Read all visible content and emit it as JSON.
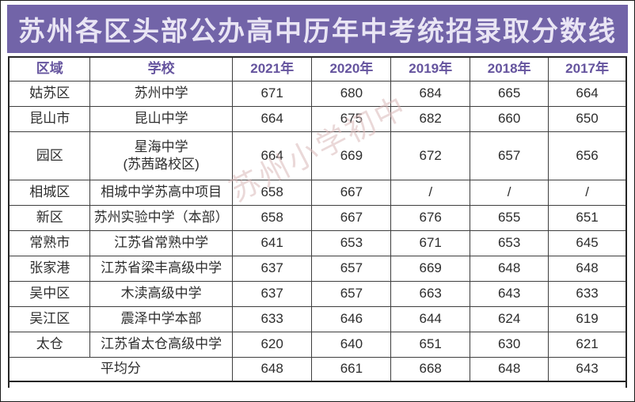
{
  "title": "苏州各区头部公办高中历年中考统招录取分数线",
  "watermark": "苏州小学初中",
  "colors": {
    "title_bg": "#7264a8",
    "title_text": "#e9e5f4",
    "header_text": "#65549e",
    "body_text": "#2d2d2d",
    "border": "#3e3e3e",
    "watermark": "#d9b9b9"
  },
  "chart_data": {
    "type": "table",
    "title": "苏州各区头部公办高中历年中考统招录取分数线",
    "columns": [
      "区域",
      "学校",
      "2021年",
      "2020年",
      "2019年",
      "2018年",
      "2017年"
    ],
    "rows": [
      {
        "region": "姑苏区",
        "school": "苏州中学",
        "scores": [
          "671",
          "680",
          "684",
          "665",
          "664"
        ]
      },
      {
        "region": "昆山市",
        "school": "昆山中学",
        "scores": [
          "664",
          "675",
          "682",
          "660",
          "650"
        ]
      },
      {
        "region": "园区",
        "school": "星海中学(苏茜路校区)",
        "school_lines": [
          "星海中学",
          "(苏茜路校区)"
        ],
        "scores": [
          "664",
          "669",
          "672",
          "657",
          "656"
        ]
      },
      {
        "region": "相城区",
        "school": "相城中学苏高中项目",
        "scores": [
          "658",
          "667",
          "/",
          "/",
          "/"
        ]
      },
      {
        "region": "新区",
        "school": "苏州实验中学（本部）",
        "scores": [
          "658",
          "667",
          "676",
          "655",
          "651"
        ]
      },
      {
        "region": "常熟市",
        "school": "江苏省常熟中学",
        "scores": [
          "641",
          "653",
          "671",
          "653",
          "645"
        ]
      },
      {
        "region": "张家港",
        "school": "江苏省梁丰高级中学",
        "scores": [
          "637",
          "657",
          "669",
          "648",
          "648"
        ]
      },
      {
        "region": "吴中区",
        "school": "木渎高级中学",
        "scores": [
          "637",
          "657",
          "663",
          "643",
          "633"
        ]
      },
      {
        "region": "吴江区",
        "school": "震泽中学本部",
        "scores": [
          "633",
          "646",
          "644",
          "624",
          "619"
        ]
      },
      {
        "region": "太仓",
        "school": "江苏省太仓高级中学",
        "scores": [
          "620",
          "640",
          "651",
          "630",
          "621"
        ]
      }
    ],
    "summary": {
      "label": "平均分",
      "scores": [
        "648",
        "661",
        "668",
        "648",
        "643"
      ]
    }
  }
}
